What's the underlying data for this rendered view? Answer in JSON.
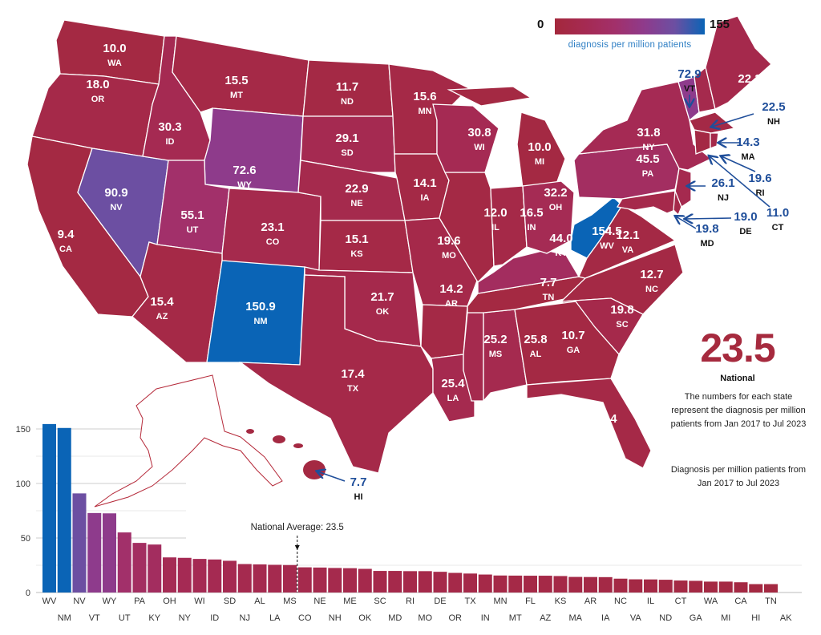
{
  "legend": {
    "min": "0",
    "max": "155",
    "label": "diagnosis per million patients",
    "color_stops": [
      {
        "value": 0,
        "color": "#a4283c"
      },
      {
        "value": 30,
        "color": "#a52a52"
      },
      {
        "value": 55,
        "color": "#a2306a"
      },
      {
        "value": 73,
        "color": "#8e3b8c"
      },
      {
        "value": 91,
        "color": "#6c4fa2"
      },
      {
        "value": 150,
        "color": "#0a64b6"
      }
    ]
  },
  "colors": {
    "callout_text": "#1f4e9a",
    "state_border": "#ffffff",
    "alaska_outline": "#b52a3a",
    "national": "#a62a3e"
  },
  "national": {
    "value": "23.5",
    "label": "National",
    "note_1": "The numbers for each state represent the diagnosis per million patients from Jan 2017 to Jul 2023",
    "note_2": "Diagnosis per million patients from Jan 2017 to Jul 2023"
  },
  "map_values": {
    "WA": 10.0,
    "OR": 18.0,
    "CA": 9.4,
    "NV": 90.9,
    "ID": 30.3,
    "MT": 15.5,
    "WY": 72.6,
    "UT": 55.1,
    "CO": 23.1,
    "AZ": 15.4,
    "NM": 150.9,
    "ND": 11.7,
    "SD": 29.1,
    "NE": 22.9,
    "KS": 15.1,
    "OK": 21.7,
    "TX": 17.4,
    "MN": 15.6,
    "IA": 14.1,
    "MO": 19.6,
    "AR": 14.2,
    "LA": 25.4,
    "MS": 25.2,
    "AL": 25.8,
    "TN": 7.7,
    "KY": 44.0,
    "IL": 12.0,
    "IN": 16.5,
    "OH": 32.2,
    "MI": 10.0,
    "WI": 30.8,
    "WV": 154.5,
    "VA": 12.1,
    "NC": 12.7,
    "SC": 19.8,
    "GA": 10.7,
    "FL": 15.4,
    "PA": 45.5,
    "NY": 31.8,
    "ME": 22.3,
    "VT": 72.9,
    "NH": 22.5,
    "MA": 14.3,
    "RI": 19.6,
    "CT": 11.0,
    "NJ": 26.1,
    "DE": 19.0,
    "MD": 19.8,
    "HI": 7.7
  },
  "chart_data": {
    "type": "bar",
    "title": "",
    "xlabel": "",
    "ylabel": "",
    "categories": [
      "WV",
      "NM",
      "NV",
      "VT",
      "WY",
      "UT",
      "PA",
      "KY",
      "OH",
      "NY",
      "WI",
      "ID",
      "SD",
      "NJ",
      "AL",
      "LA",
      "MS",
      "CO",
      "NE",
      "NH",
      "ME",
      "OK",
      "SC",
      "MD",
      "RI",
      "MO",
      "DE",
      "OR",
      "TX",
      "IN",
      "MN",
      "MT",
      "FL",
      "AZ",
      "KS",
      "MA",
      "AR",
      "IA",
      "NC",
      "VA",
      "IL",
      "ND",
      "CT",
      "GA",
      "WA",
      "MI",
      "CA",
      "HI",
      "TN",
      "AK"
    ],
    "values": [
      154.5,
      150.9,
      90.9,
      72.9,
      72.6,
      55.1,
      45.5,
      44.0,
      32.2,
      31.8,
      30.8,
      30.3,
      29.1,
      26.1,
      25.8,
      25.4,
      25.2,
      23.1,
      22.9,
      22.5,
      22.3,
      21.7,
      19.8,
      19.8,
      19.6,
      19.6,
      19.0,
      18.0,
      17.4,
      16.5,
      15.6,
      15.5,
      15.4,
      15.4,
      15.1,
      14.3,
      14.2,
      14.1,
      12.7,
      12.1,
      12.0,
      11.7,
      11.0,
      10.7,
      10.0,
      10.0,
      9.4,
      7.7,
      7.7,
      0
    ],
    "yticks": [
      0,
      50,
      100,
      150
    ],
    "ylim": [
      0,
      160
    ],
    "grid": true,
    "annotation": "National Average: 23.5",
    "national_average": 23.5
  }
}
